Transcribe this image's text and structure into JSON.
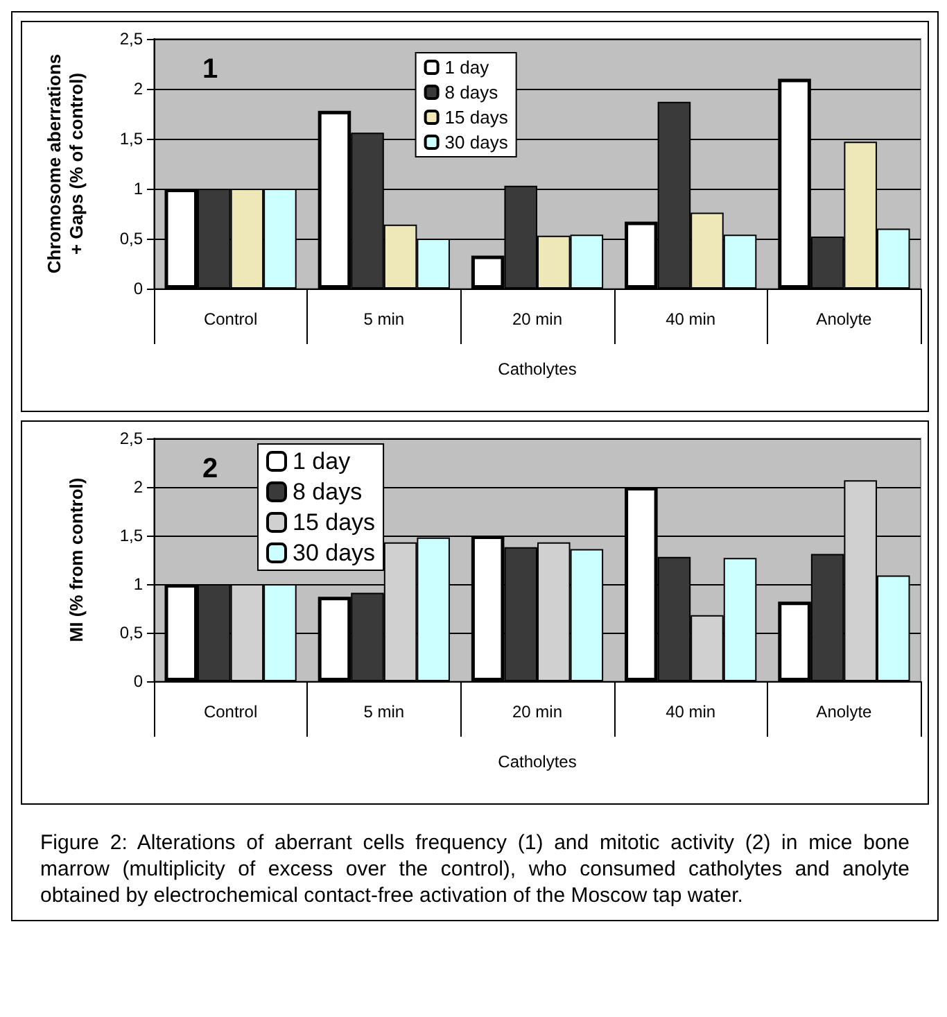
{
  "chart_data": [
    {
      "type": "bar",
      "title": "1",
      "ylabel": "Chromosome aberrations + Gaps (% of control)",
      "categories": [
        "Control",
        "5 min",
        "20 min",
        "40 min",
        "Anolyte"
      ],
      "annotations": [
        "Catholytes"
      ],
      "series": [
        {
          "name": "1 day",
          "color": "#ffffff",
          "values": [
            1,
            1.78,
            0.33,
            0.67,
            2.1
          ]
        },
        {
          "name": "8 days",
          "color": "#3a3a3a",
          "values": [
            1,
            1.56,
            1.03,
            1.87,
            0.52
          ]
        },
        {
          "name": "15 days",
          "color": "#eee8b8",
          "values": [
            1,
            0.64,
            0.53,
            0.76,
            1.47
          ]
        },
        {
          "name": "30 days",
          "color": "#ccffff",
          "values": [
            1,
            0.5,
            0.54,
            0.54,
            0.6
          ]
        }
      ],
      "ylim": [
        0,
        2.5
      ],
      "yticks": [
        0,
        {
          "value": 0.5,
          "label": "0,5"
        },
        1,
        {
          "value": 1.5,
          "label": "1,5"
        },
        2,
        {
          "value": 2.5,
          "label": "2,5"
        }
      ],
      "grid": "y",
      "legend": "top"
    },
    {
      "type": "bar",
      "title": "2",
      "ylabel": "MI (% from control)",
      "categories": [
        "Control",
        "5 min",
        "20 min",
        "40 min",
        "Anolyte"
      ],
      "annotations": [
        "Catholytes",
        "Figure 2: Alterations of aberrant cells frequency (1) and mitotic activity (2) in mice bone marrow (multiplicity of excess over the control), who consumed catholytes and anolyte obtained by electrochemical contact-free activation of the Moscow tap water."
      ],
      "series": [
        {
          "name": "1 day",
          "color": "#ffffff",
          "values": [
            1,
            0.87,
            1.5,
            2.0,
            0.82
          ]
        },
        {
          "name": "8 days",
          "color": "#3a3a3a",
          "values": [
            1,
            0.91,
            1.38,
            1.28,
            1.31
          ]
        },
        {
          "name": "15 days",
          "color": "#d0d0d0",
          "values": [
            1,
            1.43,
            1.43,
            0.68,
            2.07
          ]
        },
        {
          "name": "30 days",
          "color": "#ccffff",
          "values": [
            1,
            1.48,
            1.36,
            1.27,
            1.09
          ]
        }
      ],
      "ylim": [
        0,
        2.5
      ],
      "yticks": [
        0,
        {
          "value": 0.5,
          "label": "0,5"
        },
        1,
        {
          "value": 1.5,
          "label": "1,5"
        },
        2,
        {
          "value": 2.5,
          "label": "2,5"
        }
      ],
      "grid": "y",
      "legend": "top left"
    }
  ]
}
